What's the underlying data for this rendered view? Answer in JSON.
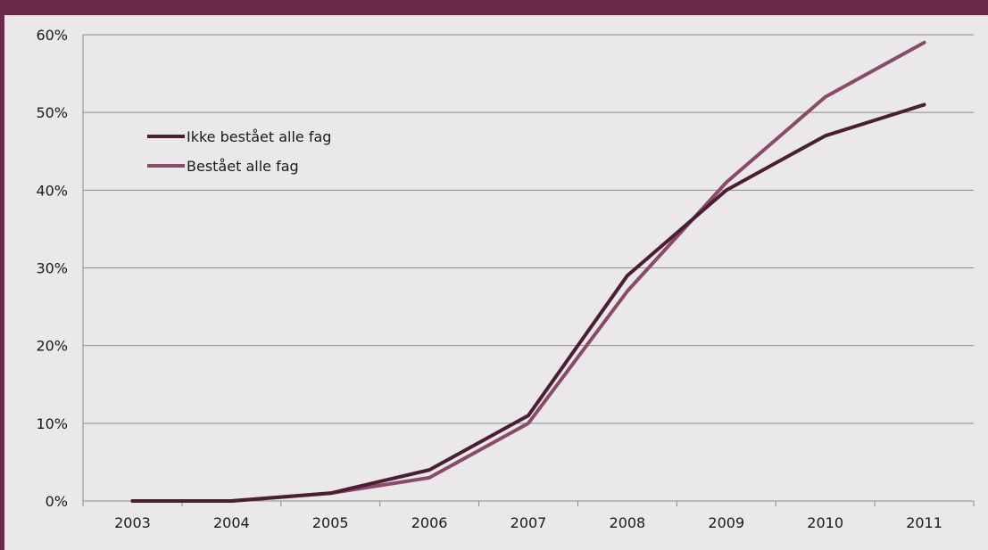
{
  "chart_data": {
    "type": "line",
    "categories": [
      "2003",
      "2004",
      "2005",
      "2006",
      "2007",
      "2008",
      "2009",
      "2010",
      "2011"
    ],
    "ylim": [
      0,
      60
    ],
    "yticks": [
      0,
      10,
      20,
      30,
      40,
      50,
      60
    ],
    "ytick_labels": [
      "0%",
      "10%",
      "20%",
      "30%",
      "40%",
      "50%",
      "60%"
    ],
    "grid": true,
    "legend_position": "top-left",
    "series": [
      {
        "name": "Ikke bestået alle fag",
        "color": "#4a1f33",
        "values": [
          0,
          0,
          1,
          4,
          11,
          29,
          40,
          47,
          51
        ]
      },
      {
        "name": "Bestået alle fag",
        "color": "#8a4a6a",
        "values": [
          0,
          0,
          1,
          3,
          10,
          27,
          41,
          52,
          59
        ]
      }
    ]
  },
  "colors": {
    "frame": "#6b2a49",
    "plot_background": "#eae8e9",
    "gridline": "#8c8c8c"
  }
}
